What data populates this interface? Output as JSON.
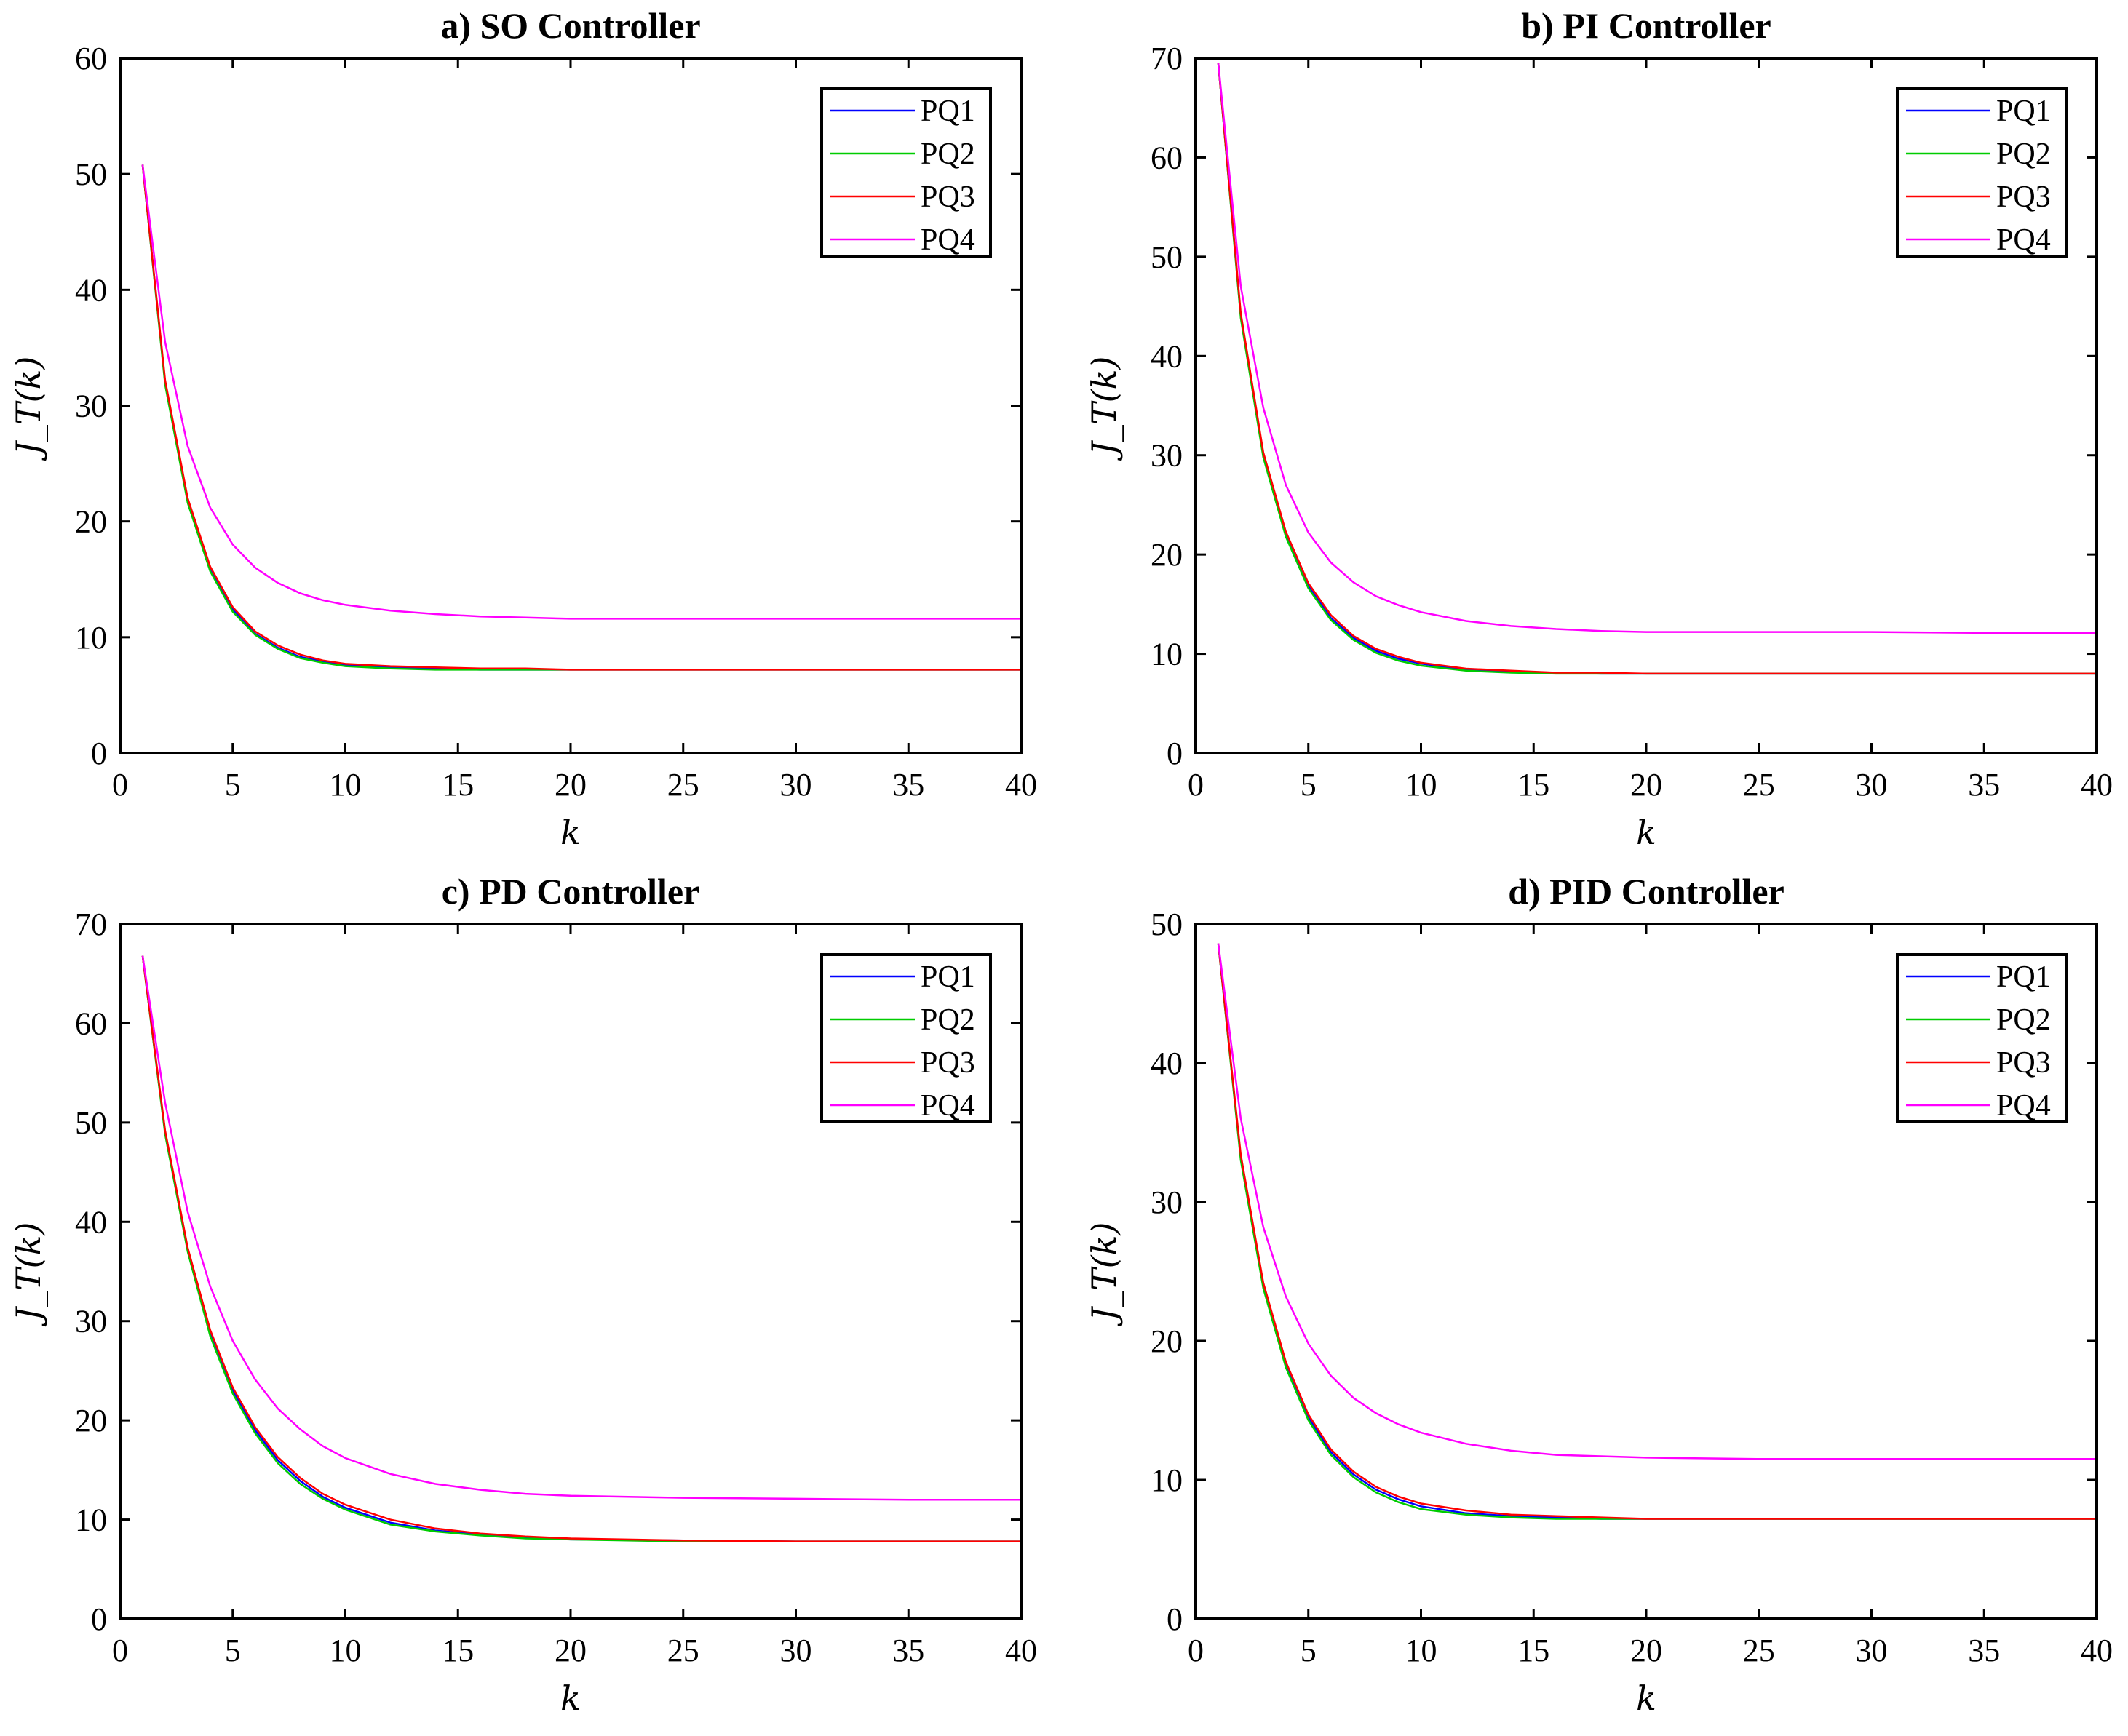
{
  "chart_data": [
    {
      "type": "line",
      "title": "a) SO Controller",
      "xlabel": "k",
      "ylabel": "J_T(k)",
      "xlim": [
        0,
        40
      ],
      "ylim": [
        0,
        60
      ],
      "xticks": [
        0,
        5,
        10,
        15,
        20,
        25,
        30,
        35,
        40
      ],
      "yticks": [
        0,
        10,
        20,
        30,
        40,
        50,
        60
      ],
      "legend": "top-right",
      "grid": false,
      "x": [
        1,
        2,
        3,
        4,
        5,
        6,
        7,
        8,
        9,
        10,
        12,
        14,
        16,
        18,
        20,
        25,
        30,
        35,
        40
      ],
      "series": [
        {
          "name": "PQ1",
          "color": "#0000ff",
          "values": [
            50.8,
            32.0,
            21.8,
            15.9,
            12.4,
            10.3,
            9.1,
            8.3,
            7.9,
            7.6,
            7.4,
            7.3,
            7.2,
            7.2,
            7.2,
            7.2,
            7.2,
            7.2,
            7.2
          ]
        },
        {
          "name": "PQ2",
          "color": "#00cc00",
          "values": [
            50.8,
            31.8,
            21.6,
            15.7,
            12.2,
            10.2,
            9.0,
            8.2,
            7.8,
            7.5,
            7.3,
            7.2,
            7.2,
            7.2,
            7.2,
            7.2,
            7.2,
            7.2,
            7.2
          ]
        },
        {
          "name": "PQ3",
          "color": "#ff0000",
          "values": [
            50.8,
            32.2,
            22.0,
            16.1,
            12.6,
            10.5,
            9.3,
            8.5,
            8.0,
            7.7,
            7.5,
            7.4,
            7.3,
            7.3,
            7.2,
            7.2,
            7.2,
            7.2,
            7.2
          ]
        },
        {
          "name": "PQ4",
          "color": "#ff00ff",
          "values": [
            50.8,
            35.5,
            26.5,
            21.2,
            18.0,
            16.0,
            14.7,
            13.8,
            13.2,
            12.8,
            12.3,
            12.0,
            11.8,
            11.7,
            11.6,
            11.6,
            11.6,
            11.6,
            11.6
          ]
        }
      ]
    },
    {
      "type": "line",
      "title": "b) PI Controller",
      "xlabel": "k",
      "ylabel": "J_T(k)",
      "xlim": [
        0,
        40
      ],
      "ylim": [
        0,
        70
      ],
      "xticks": [
        0,
        5,
        10,
        15,
        20,
        25,
        30,
        35,
        40
      ],
      "yticks": [
        0,
        10,
        20,
        30,
        40,
        50,
        60,
        70
      ],
      "legend": "top-right",
      "grid": false,
      "x": [
        1,
        2,
        3,
        4,
        5,
        6,
        7,
        8,
        9,
        10,
        12,
        14,
        16,
        18,
        20,
        25,
        30,
        35,
        40
      ],
      "series": [
        {
          "name": "PQ1",
          "color": "#0000ff",
          "values": [
            69.5,
            44.0,
            30.0,
            22.0,
            16.8,
            13.6,
            11.6,
            10.3,
            9.5,
            9.0,
            8.4,
            8.2,
            8.1,
            8.0,
            8.0,
            8.0,
            8.0,
            8.0,
            8.0
          ]
        },
        {
          "name": "PQ2",
          "color": "#00cc00",
          "values": [
            69.5,
            43.8,
            29.8,
            21.8,
            16.6,
            13.4,
            11.4,
            10.1,
            9.3,
            8.8,
            8.3,
            8.1,
            8.0,
            8.0,
            8.0,
            8.0,
            8.0,
            8.0,
            8.0
          ]
        },
        {
          "name": "PQ3",
          "color": "#ff0000",
          "values": [
            69.5,
            44.3,
            30.3,
            22.3,
            17.1,
            13.9,
            11.8,
            10.5,
            9.7,
            9.1,
            8.5,
            8.3,
            8.1,
            8.1,
            8.0,
            8.0,
            8.0,
            8.0,
            8.0
          ]
        },
        {
          "name": "PQ4",
          "color": "#ff00ff",
          "values": [
            69.5,
            47.0,
            34.8,
            27.0,
            22.2,
            19.2,
            17.2,
            15.8,
            14.9,
            14.2,
            13.3,
            12.8,
            12.5,
            12.3,
            12.2,
            12.2,
            12.2,
            12.1,
            12.1
          ]
        }
      ]
    },
    {
      "type": "line",
      "title": "c) PD Controller",
      "xlabel": "k",
      "ylabel": "J_T(k)",
      "xlim": [
        0,
        40
      ],
      "ylim": [
        0,
        70
      ],
      "xticks": [
        0,
        5,
        10,
        15,
        20,
        25,
        30,
        35,
        40
      ],
      "yticks": [
        0,
        10,
        20,
        30,
        40,
        50,
        60,
        70
      ],
      "legend": "top-right",
      "grid": false,
      "x": [
        1,
        2,
        3,
        4,
        5,
        6,
        7,
        8,
        9,
        10,
        12,
        14,
        16,
        18,
        20,
        25,
        30,
        35,
        40
      ],
      "series": [
        {
          "name": "PQ1",
          "color": "#0000ff",
          "values": [
            66.8,
            49.0,
            37.2,
            28.8,
            23.0,
            19.0,
            16.0,
            13.9,
            12.3,
            11.2,
            9.7,
            8.9,
            8.5,
            8.2,
            8.0,
            7.9,
            7.8,
            7.8,
            7.8
          ]
        },
        {
          "name": "PQ2",
          "color": "#00cc00",
          "values": [
            66.8,
            48.8,
            37.0,
            28.5,
            22.7,
            18.7,
            15.7,
            13.6,
            12.1,
            11.0,
            9.5,
            8.8,
            8.4,
            8.1,
            8.0,
            7.8,
            7.8,
            7.8,
            7.8
          ]
        },
        {
          "name": "PQ3",
          "color": "#ff0000",
          "values": [
            66.8,
            49.2,
            37.4,
            29.1,
            23.3,
            19.3,
            16.3,
            14.2,
            12.6,
            11.5,
            10.0,
            9.1,
            8.6,
            8.3,
            8.1,
            7.9,
            7.8,
            7.8,
            7.8
          ]
        },
        {
          "name": "PQ4",
          "color": "#ff00ff",
          "values": [
            66.8,
            52.0,
            41.0,
            33.5,
            28.0,
            24.1,
            21.2,
            19.1,
            17.4,
            16.2,
            14.6,
            13.6,
            13.0,
            12.6,
            12.4,
            12.2,
            12.1,
            12.0,
            12.0
          ]
        }
      ]
    },
    {
      "type": "line",
      "title": "d) PID Controller",
      "xlabel": "k",
      "ylabel": "J_T(k)",
      "xlim": [
        0,
        40
      ],
      "ylim": [
        0,
        50
      ],
      "xticks": [
        0,
        5,
        10,
        15,
        20,
        25,
        30,
        35,
        40
      ],
      "yticks": [
        0,
        10,
        20,
        30,
        40,
        50
      ],
      "legend": "top-right",
      "grid": false,
      "x": [
        1,
        2,
        3,
        4,
        5,
        6,
        7,
        8,
        9,
        10,
        12,
        14,
        16,
        18,
        20,
        25,
        30,
        35,
        40
      ],
      "series": [
        {
          "name": "PQ1",
          "color": "#0000ff",
          "values": [
            48.6,
            33.2,
            24.0,
            18.3,
            14.5,
            12.0,
            10.4,
            9.3,
            8.6,
            8.1,
            7.6,
            7.4,
            7.3,
            7.2,
            7.2,
            7.2,
            7.2,
            7.2,
            7.2
          ]
        },
        {
          "name": "PQ2",
          "color": "#00cc00",
          "values": [
            48.6,
            33.0,
            23.8,
            18.1,
            14.3,
            11.8,
            10.2,
            9.1,
            8.4,
            7.9,
            7.5,
            7.3,
            7.2,
            7.2,
            7.2,
            7.2,
            7.2,
            7.2,
            7.2
          ]
        },
        {
          "name": "PQ3",
          "color": "#ff0000",
          "values": [
            48.6,
            33.4,
            24.2,
            18.5,
            14.7,
            12.2,
            10.6,
            9.5,
            8.8,
            8.3,
            7.8,
            7.5,
            7.4,
            7.3,
            7.2,
            7.2,
            7.2,
            7.2,
            7.2
          ]
        },
        {
          "name": "PQ4",
          "color": "#ff00ff",
          "values": [
            48.6,
            36.0,
            28.2,
            23.2,
            19.8,
            17.5,
            15.9,
            14.8,
            14.0,
            13.4,
            12.6,
            12.1,
            11.8,
            11.7,
            11.6,
            11.5,
            11.5,
            11.5,
            11.5
          ]
        }
      ]
    }
  ]
}
